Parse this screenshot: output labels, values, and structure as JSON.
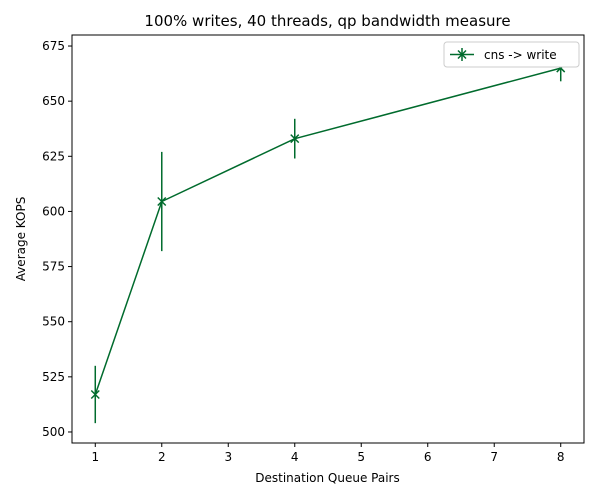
{
  "chart_data": {
    "type": "line",
    "title": "100% writes, 40 threads, qp bandwidth measure",
    "xlabel": "Destination Queue Pairs",
    "ylabel": "Average KOPS",
    "xlim": [
      0.65,
      8.35
    ],
    "ylim": [
      495,
      680
    ],
    "xticks": [
      1,
      2,
      3,
      4,
      5,
      6,
      7,
      8
    ],
    "yticks": [
      500,
      525,
      550,
      575,
      600,
      625,
      650,
      675
    ],
    "grid": false,
    "legend_position": "top-right",
    "series": [
      {
        "name": "cns -> write",
        "color": "#006b2d",
        "marker": "x",
        "x": [
          1,
          2,
          4,
          8
        ],
        "y": [
          517,
          604.5,
          633,
          665
        ],
        "err_low": [
          504,
          582,
          624,
          659
        ],
        "err_high": [
          530,
          627,
          642,
          668
        ]
      }
    ]
  }
}
